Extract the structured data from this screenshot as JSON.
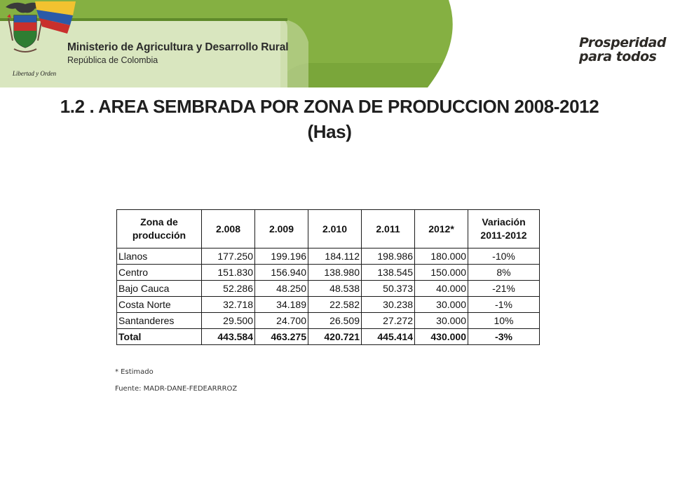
{
  "header": {
    "ministry": "Ministerio de Agricultura y Desarrollo Rural",
    "republic": "República de Colombia",
    "motto": "Libertad y Orden",
    "brand_line1": "Prosperidad",
    "brand_line2": "para todos",
    "band_color": "#7aa63a",
    "band_light_color": "#d9e6bf"
  },
  "title": {
    "line1": "1.2 . AREA SEMBRADA POR ZONA DE PRODUCCION 2008-2012",
    "line2": "(Has)"
  },
  "table": {
    "headers": [
      "Zona de producción",
      "2.008",
      "2.009",
      "2.010",
      "2.011",
      "2012*",
      "Variación 2011-2012"
    ],
    "rows": [
      {
        "zone": "Llanos",
        "values": [
          "177.250",
          "199.196",
          "184.112",
          "198.986",
          "180.000"
        ],
        "variation": "-10%"
      },
      {
        "zone": "Centro",
        "values": [
          "151.830",
          "156.940",
          "138.980",
          "138.545",
          "150.000"
        ],
        "variation": "8%"
      },
      {
        "zone": "Bajo Cauca",
        "values": [
          "52.286",
          "48.250",
          "48.538",
          "50.373",
          "40.000"
        ],
        "variation": "-21%"
      },
      {
        "zone": "Costa Norte",
        "values": [
          "32.718",
          "34.189",
          "22.582",
          "30.238",
          "30.000"
        ],
        "variation": "-1%"
      },
      {
        "zone": "Santanderes",
        "values": [
          "29.500",
          "24.700",
          "26.509",
          "27.272",
          "30.000"
        ],
        "variation": "10%"
      }
    ],
    "total": {
      "zone": "Total",
      "values": [
        "443.584",
        "463.275",
        "420.721",
        "445.414",
        "430.000"
      ],
      "variation": "-3%"
    }
  },
  "footnote": "* Estimado",
  "source": "Fuente: MADR-DANE-FEDEARRROZ"
}
